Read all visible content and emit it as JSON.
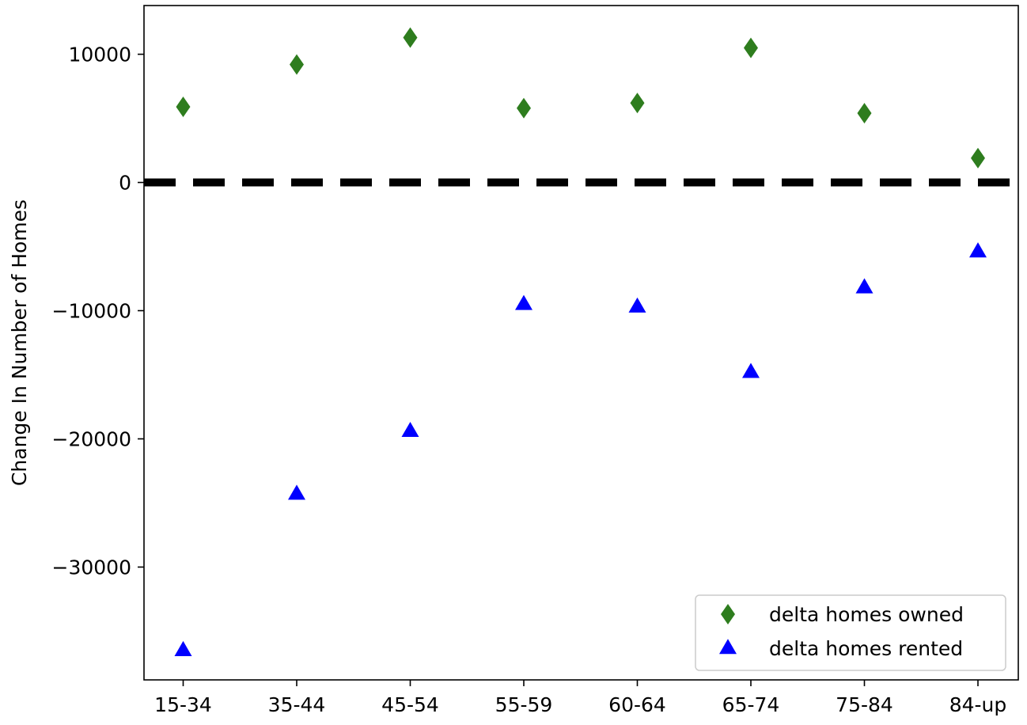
{
  "chart_data": {
    "type": "scatter",
    "title": "",
    "xlabel": "",
    "ylabel": "Change In Number of Homes",
    "categories": [
      "15-34",
      "35-44",
      "45-54",
      "55-59",
      "60-64",
      "65-74",
      "75-84",
      "84-up"
    ],
    "ylim": [
      -38800,
      13800
    ],
    "yticks": [
      10000,
      0,
      -10000,
      -20000,
      -30000
    ],
    "ytick_labels": [
      "10000",
      "0",
      "−10000",
      "−20000",
      "−30000"
    ],
    "grid": false,
    "reference_line": {
      "y": 0,
      "style": "dashed",
      "color": "#000000"
    },
    "legend": {
      "placement": "bottom-right"
    },
    "series": [
      {
        "name": "delta homes owned",
        "marker": "diamond",
        "color": "#2e7d1e",
        "values": [
          5900,
          9200,
          11300,
          5800,
          6200,
          10500,
          5400,
          1900
        ]
      },
      {
        "name": "delta homes rented",
        "marker": "triangle",
        "color": "#0000ff",
        "values": [
          -36500,
          -24300,
          -19400,
          -9500,
          -9700,
          -14800,
          -8200,
          -5400
        ]
      }
    ]
  }
}
